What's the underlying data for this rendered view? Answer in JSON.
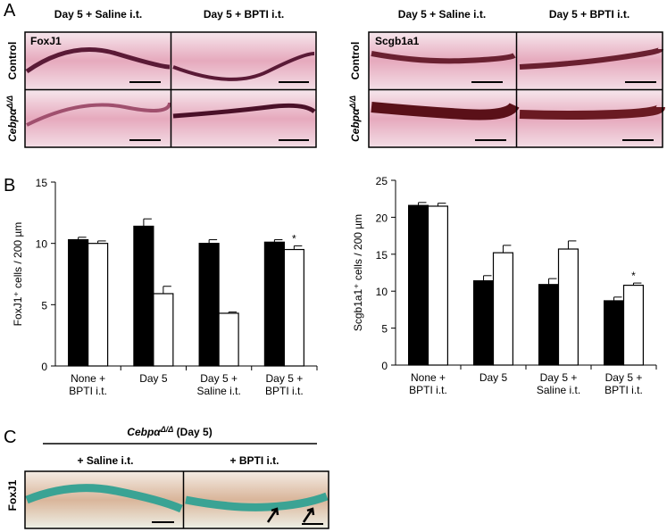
{
  "panel_labels": [
    "A",
    "B",
    "C"
  ],
  "panel_a": {
    "left": {
      "stain": "FoxJ1",
      "columns": [
        "Day 5 + Saline i.t.",
        "Day 5 + BPTI i.t."
      ],
      "rows": [
        "Control",
        {
          "text": "Cebpα",
          "sup": "Δ/Δ"
        }
      ]
    },
    "right": {
      "stain": "Scgb1a1",
      "columns": [
        "Day 5 + Saline i.t.",
        "Day 5 + BPTI i.t."
      ],
      "rows": [
        "Control",
        {
          "text": "Cebpα",
          "sup": "Δ/Δ"
        }
      ]
    }
  },
  "chart_data": [
    {
      "type": "bar",
      "ylabel": "FoxJ1⁺ cells / 200 µm",
      "categories": [
        "None +\nBPTI i.t.",
        "Day 5",
        "Day 5 +\nSaline i.t.",
        "Day 5 +\nBPTI i.t."
      ],
      "series": [
        {
          "color": "#000000",
          "values": [
            10.3,
            11.4,
            10.0,
            10.1
          ],
          "errors": [
            0.2,
            0.6,
            0.3,
            0.2
          ]
        },
        {
          "color": "#ffffff",
          "values": [
            10.0,
            5.9,
            4.3,
            9.5
          ],
          "errors": [
            0.2,
            0.6,
            0.1,
            0.3
          ]
        }
      ],
      "ylim": [
        0,
        15
      ],
      "yticks": [
        0,
        5,
        10,
        15
      ],
      "annotation": "*"
    },
    {
      "type": "bar",
      "ylabel": "Scgb1a1⁺ cells / 200 µm",
      "categories": [
        "None +\nBPTI i.t.",
        "Day 5",
        "Day 5 +\nSaline i.t.",
        "Day 5 +\nBPTI i.t."
      ],
      "series": [
        {
          "color": "#000000",
          "values": [
            21.6,
            11.4,
            10.9,
            8.7
          ],
          "errors": [
            0.4,
            0.7,
            0.8,
            0.5
          ]
        },
        {
          "color": "#ffffff",
          "values": [
            21.5,
            15.2,
            15.7,
            10.8
          ],
          "errors": [
            0.4,
            1.0,
            1.1,
            0.3
          ]
        }
      ],
      "ylim": [
        0,
        25
      ],
      "yticks": [
        0,
        5,
        10,
        15,
        20,
        25
      ],
      "annotation": "*"
    }
  ],
  "panel_c": {
    "title": {
      "text": "Cebpα",
      "sup": "Δ/Δ",
      "suffix": " (Day 5)"
    },
    "columns": [
      "+ Saline i.t.",
      "+ BPTI i.t."
    ],
    "row": "FoxJ1"
  }
}
